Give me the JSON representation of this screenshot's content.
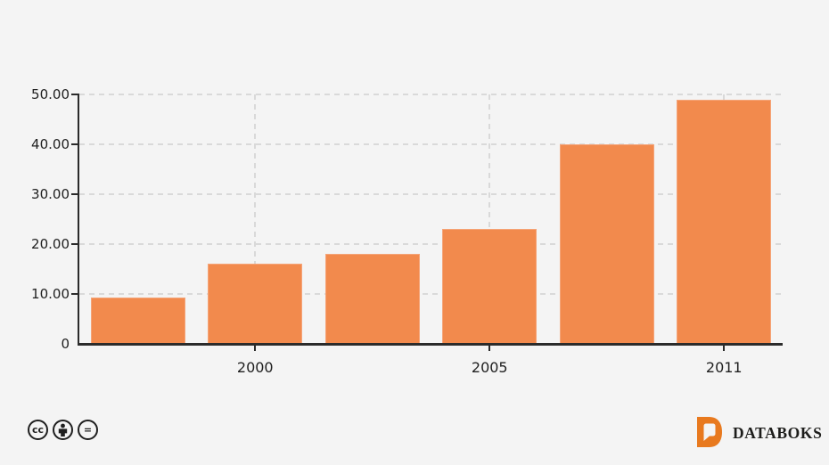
{
  "chart_data": {
    "type": "bar",
    "title": "",
    "xlabel": "",
    "ylabel": "",
    "values": [
      9.2,
      16,
      18,
      23,
      40,
      49
    ],
    "x_tick_labels": [
      {
        "bar_index": 1,
        "label": "2000"
      },
      {
        "bar_index": 3,
        "label": "2005"
      },
      {
        "bar_index": 5,
        "label": "2011"
      }
    ],
    "y_ticks": [
      {
        "value": 0,
        "label": "0"
      },
      {
        "value": 10,
        "label": "10.00"
      },
      {
        "value": 20,
        "label": "20.00"
      },
      {
        "value": 30,
        "label": "30.00"
      },
      {
        "value": 40,
        "label": "40.00"
      },
      {
        "value": 50,
        "label": "50.00"
      }
    ],
    "ylim": [
      0,
      50
    ],
    "grid": {
      "horizontal": "dashed",
      "vertical": "dashed-at-labeled-x-ticks"
    },
    "legend": "none",
    "bar_color": "#f28a4d"
  },
  "footer": {
    "license_icons": [
      {
        "name": "creative-commons-icon",
        "glyph": "cc"
      },
      {
        "name": "attribution-person-icon",
        "glyph": "person"
      },
      {
        "name": "equal-sign-icon",
        "glyph": "="
      }
    ],
    "brand": {
      "name": "DATABOKS",
      "logo_color": "#e8791e",
      "text_color": "#1d1d1b"
    }
  },
  "colors": {
    "background": "#f4f4f4",
    "bar": "#f28a4d",
    "bar_border": "#f5a478",
    "grid": "#d9d9d9",
    "axis": "#2b2b2b",
    "text": "#1f1f1f"
  }
}
